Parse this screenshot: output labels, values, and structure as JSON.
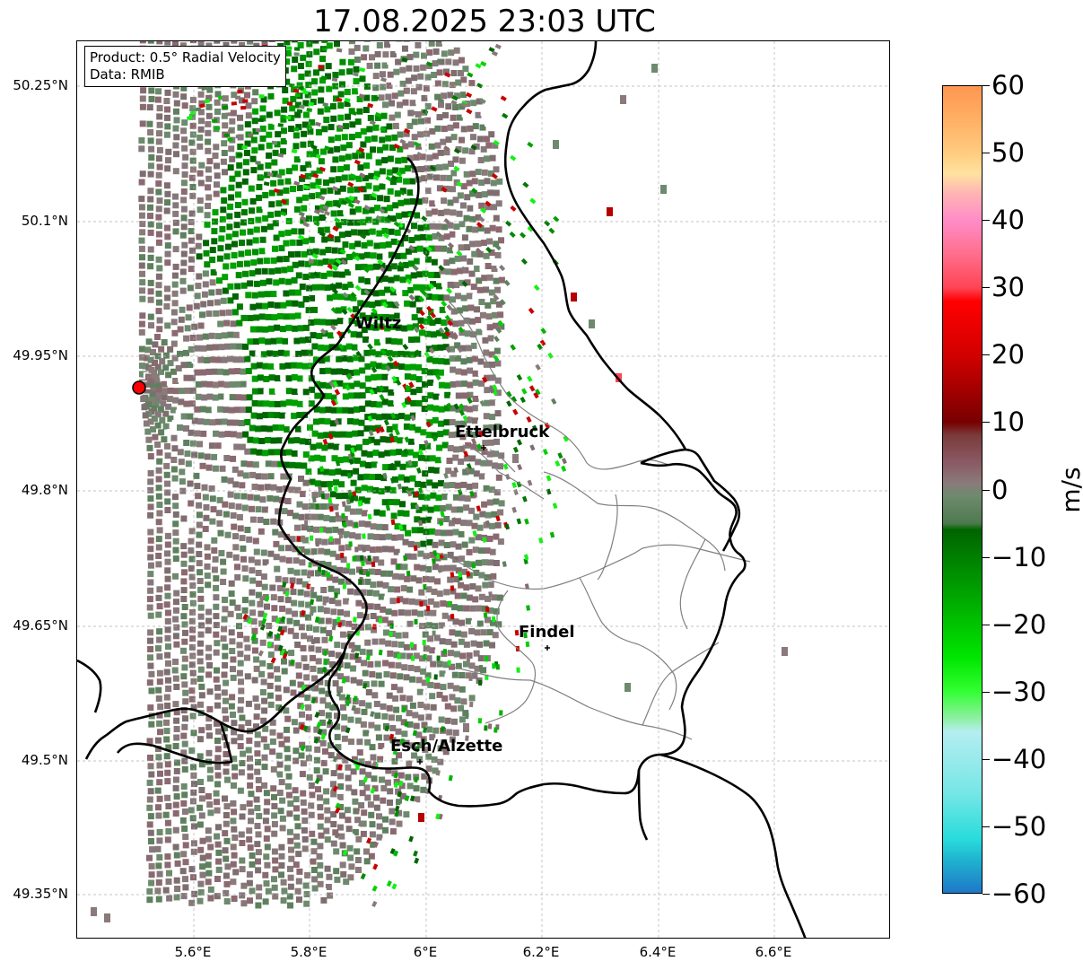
{
  "title": "17.08.2025 23:03 UTC",
  "info_box": {
    "product": "Product: 0.5° Radial Velocity",
    "data": "Data: RMIB"
  },
  "axes": {
    "y_labels": [
      "50.25°N",
      "50.1°N",
      "49.95°N",
      "49.8°N",
      "49.65°N",
      "49.5°N",
      "49.35°N"
    ],
    "x_labels": [
      "5.6°E",
      "5.8°E",
      "6°E",
      "6.2°E",
      "6.4°E",
      "6.6°E"
    ]
  },
  "cities": [
    "Wiltz",
    "Ettelbruck",
    "Findel",
    "Esch/Alzette"
  ],
  "colorbar": {
    "unit": "m/s",
    "ticks": [
      "60",
      "50",
      "40",
      "30",
      "20",
      "10",
      "0",
      "−10",
      "−20",
      "−30",
      "−40",
      "−50",
      "−60"
    ],
    "min": -60,
    "max": 60,
    "stops": [
      {
        "v": 60,
        "c": "#ff9650"
      },
      {
        "v": 55,
        "c": "#ffb064"
      },
      {
        "v": 50,
        "c": "#ffcc80"
      },
      {
        "v": 47,
        "c": "#ffe2a0"
      },
      {
        "v": 44,
        "c": "#ffb4b4"
      },
      {
        "v": 40,
        "c": "#ff8cc8"
      },
      {
        "v": 35,
        "c": "#ff6e8c"
      },
      {
        "v": 30,
        "c": "#ff4455"
      },
      {
        "v": 28,
        "c": "#ff0000"
      },
      {
        "v": 20,
        "c": "#d20000"
      },
      {
        "v": 15,
        "c": "#a50000"
      },
      {
        "v": 10,
        "c": "#780000"
      },
      {
        "v": 8,
        "c": "#7a3c3c"
      },
      {
        "v": 4,
        "c": "#8a5a64"
      },
      {
        "v": 1,
        "c": "#8a7a7a"
      },
      {
        "v": -1,
        "c": "#6e8a6e"
      },
      {
        "v": -5,
        "c": "#4e7a4e"
      },
      {
        "v": -6,
        "c": "#006400"
      },
      {
        "v": -15,
        "c": "#00a000"
      },
      {
        "v": -25,
        "c": "#00e600"
      },
      {
        "v": -30,
        "c": "#32ff32"
      },
      {
        "v": -34,
        "c": "#8cf0a0"
      },
      {
        "v": -36,
        "c": "#b4eef0"
      },
      {
        "v": -45,
        "c": "#78e6e6"
      },
      {
        "v": -52,
        "c": "#28dcdc"
      },
      {
        "v": -55,
        "c": "#20b4d0"
      },
      {
        "v": -60,
        "c": "#1e78c8"
      }
    ]
  },
  "colors": {
    "radar_site": "#ff0000",
    "border_national": "#000000",
    "border_canton": "#808080",
    "grid": "#b0b0b0"
  }
}
